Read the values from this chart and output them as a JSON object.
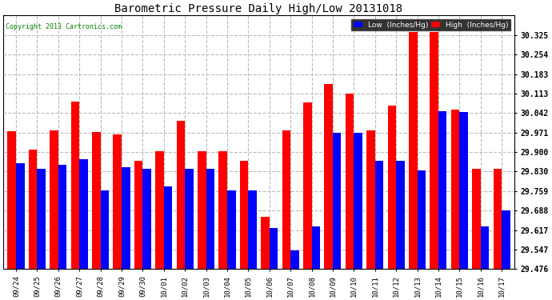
{
  "title": "Barometric Pressure Daily High/Low 20131018",
  "copyright": "Copyright 2013 Cartronics.com",
  "background_color": "#ffffff",
  "plot_bg_color": "#ffffff",
  "grid_color": "#bbbbbb",
  "dates": [
    "09/24",
    "09/25",
    "09/26",
    "09/27",
    "09/28",
    "09/29",
    "09/30",
    "10/01",
    "10/02",
    "10/03",
    "10/04",
    "10/05",
    "10/06",
    "10/07",
    "10/08",
    "10/09",
    "10/10",
    "10/11",
    "10/12",
    "10/13",
    "10/14",
    "10/15",
    "10/16",
    "10/17"
  ],
  "low_values": [
    29.86,
    29.84,
    29.855,
    29.875,
    29.76,
    29.845,
    29.84,
    29.775,
    29.84,
    29.84,
    29.76,
    29.76,
    29.625,
    29.545,
    29.63,
    29.97,
    29.97,
    29.87,
    29.87,
    29.835,
    30.05,
    30.045,
    29.63,
    29.69
  ],
  "high_values": [
    29.975,
    29.91,
    29.978,
    30.083,
    29.972,
    29.965,
    29.868,
    29.905,
    30.015,
    29.905,
    29.905,
    29.87,
    29.665,
    29.978,
    30.08,
    30.148,
    30.113,
    29.978,
    30.068,
    30.335,
    30.335,
    30.055,
    29.84,
    29.84
  ],
  "low_color": "#0000ff",
  "high_color": "#ff0000",
  "ylim_min": 29.476,
  "ylim_max": 30.396,
  "yticks": [
    29.476,
    29.547,
    29.617,
    29.688,
    29.759,
    29.83,
    29.9,
    29.971,
    30.042,
    30.113,
    30.183,
    30.254,
    30.325
  ],
  "bar_width": 0.4
}
